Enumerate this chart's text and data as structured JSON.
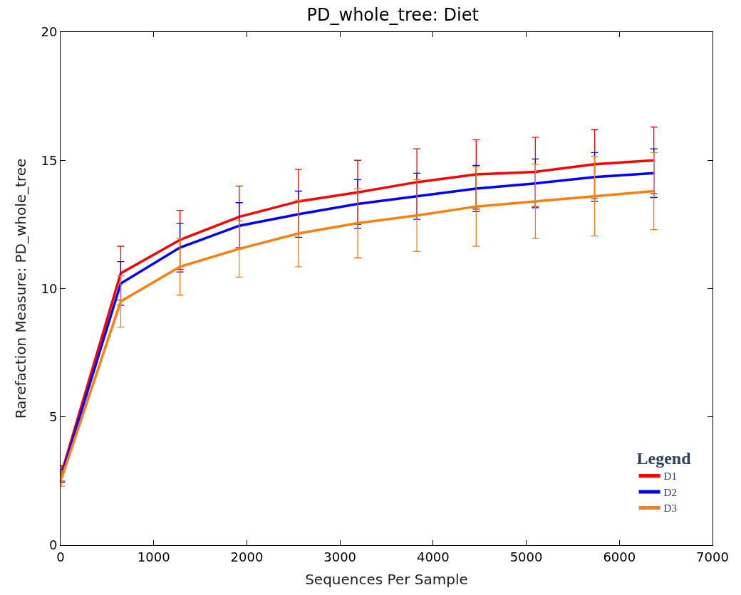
{
  "chart_data": {
    "type": "line",
    "title": "PD_whole_tree: Diet",
    "xlabel": "Sequences Per Sample",
    "ylabel": "Rarefaction Measure: PD_whole_tree",
    "legend_title": "Legend",
    "legend": "bottom right",
    "marker": "none",
    "line_style": "solid",
    "x": [
      10,
      646,
      1282,
      1918,
      2554,
      3190,
      3826,
      4462,
      5098,
      5734,
      6370
    ],
    "xlim": [
      0,
      7000
    ],
    "xticks": [
      0,
      1000,
      2000,
      3000,
      4000,
      5000,
      6000,
      7000
    ],
    "ylim": [
      0,
      20
    ],
    "yticks": [
      0,
      5,
      10,
      15,
      20
    ],
    "series": [
      {
        "name": "D1",
        "color": "#ff0000",
        "values": [
          2.8,
          10.6,
          11.9,
          12.8,
          13.4,
          13.75,
          14.15,
          14.45,
          14.55,
          14.85,
          15.0
        ],
        "errors": [
          0.3,
          1.05,
          1.15,
          1.2,
          1.25,
          1.25,
          1.3,
          1.35,
          1.35,
          1.35,
          1.3
        ]
      },
      {
        "name": "D2",
        "color": "#0000ff",
        "values": [
          2.7,
          10.2,
          11.6,
          12.45,
          12.9,
          13.3,
          13.6,
          13.9,
          14.1,
          14.35,
          14.5
        ],
        "errors": [
          0.25,
          0.85,
          0.95,
          0.9,
          0.9,
          0.95,
          0.9,
          0.9,
          0.95,
          0.95,
          0.95
        ]
      },
      {
        "name": "D3",
        "color": "#ff7f0e",
        "values": [
          2.6,
          9.5,
          10.85,
          11.55,
          12.15,
          12.55,
          12.85,
          13.2,
          13.4,
          13.6,
          13.8
        ],
        "errors": [
          0.3,
          1.0,
          1.1,
          1.1,
          1.3,
          1.35,
          1.4,
          1.55,
          1.45,
          1.55,
          1.5
        ]
      }
    ]
  }
}
